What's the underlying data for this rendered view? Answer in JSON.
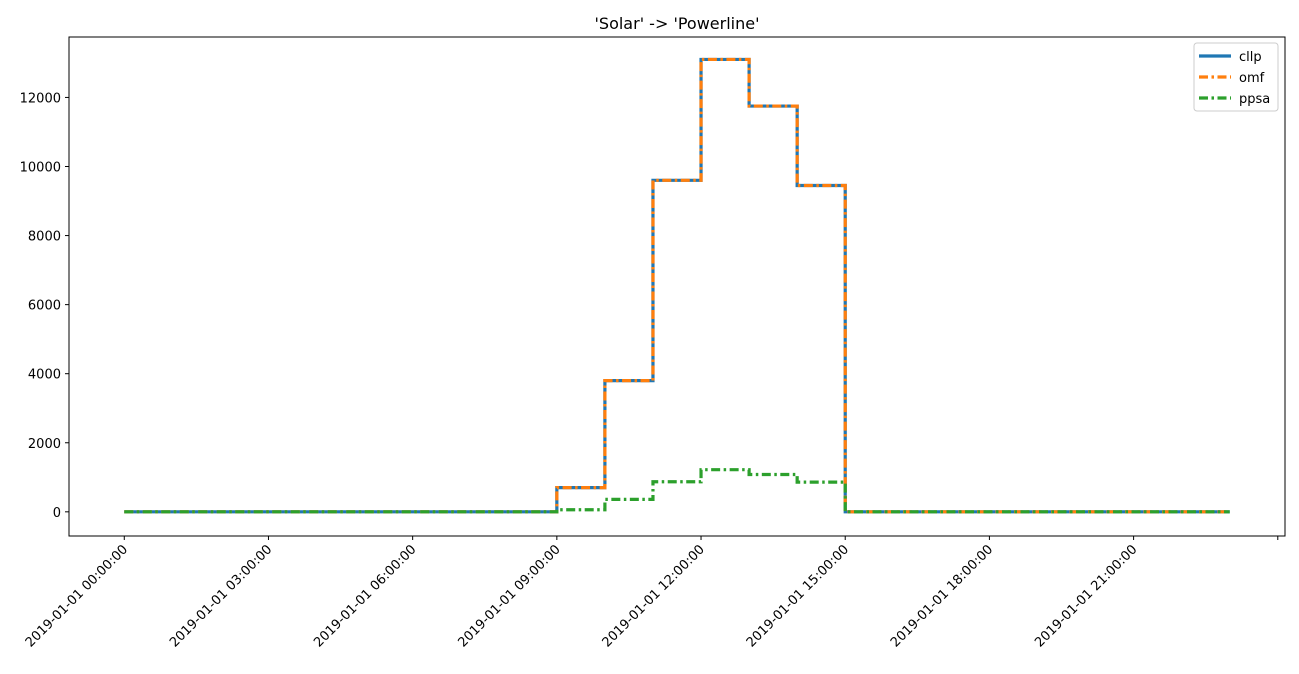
{
  "chart_data": {
    "type": "line",
    "step": "post",
    "title": "'Solar' -> 'Powerline'",
    "xlabel": "",
    "ylabel": "",
    "x_hours": [
      0,
      1,
      2,
      3,
      4,
      5,
      6,
      7,
      8,
      9,
      10,
      11,
      12,
      13,
      14,
      15,
      16,
      17,
      18,
      19,
      20,
      21,
      22,
      23
    ],
    "x_tick_labels": [
      "2019-01-01 00:00:00",
      "2019-01-01 03:00:00",
      "2019-01-01 06:00:00",
      "2019-01-01 09:00:00",
      "2019-01-01 12:00:00",
      "2019-01-01 15:00:00",
      "2019-01-01 18:00:00",
      "2019-01-01 21:00:00"
    ],
    "x_tick_hours": [
      0,
      3,
      6,
      9,
      12,
      15,
      18,
      21
    ],
    "y_ticks": [
      0,
      2000,
      4000,
      6000,
      8000,
      10000,
      12000
    ],
    "ylim": [
      -700,
      13750
    ],
    "xlim": [
      -1.15,
      24.15
    ],
    "legend_position": "top-right",
    "series": [
      {
        "name": "cllp",
        "color": "#1f77b4",
        "dash": "solid",
        "values": [
          0,
          0,
          0,
          0,
          0,
          0,
          0,
          0,
          0,
          700,
          3800,
          9600,
          13100,
          11750,
          9450,
          0,
          0,
          0,
          0,
          0,
          0,
          0,
          0,
          0
        ]
      },
      {
        "name": "omf",
        "color": "#ff7f0e",
        "dash": "dashdot",
        "values": [
          0,
          0,
          0,
          0,
          0,
          0,
          0,
          0,
          0,
          700,
          3800,
          9600,
          13100,
          11750,
          9450,
          0,
          0,
          0,
          0,
          0,
          0,
          0,
          0,
          0
        ]
      },
      {
        "name": "ppsa",
        "color": "#2ca02c",
        "dash": "dashdot",
        "values": [
          0,
          0,
          0,
          0,
          0,
          0,
          0,
          0,
          0,
          60,
          360,
          870,
          1220,
          1080,
          860,
          0,
          0,
          0,
          0,
          0,
          0,
          0,
          0,
          0
        ]
      }
    ]
  }
}
